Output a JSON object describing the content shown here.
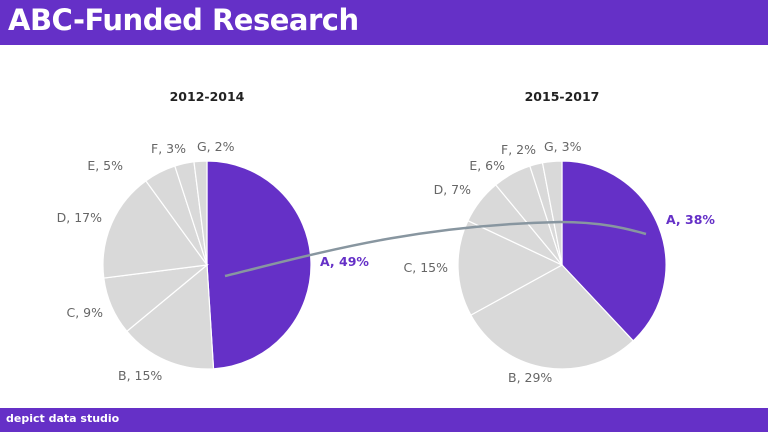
{
  "header": {
    "title": "ABC-Funded Research"
  },
  "footer": {
    "brand": "depict data studio"
  },
  "colors": {
    "accent": "#6530c7",
    "other": "#d9d9d9",
    "connector": "#8896a0",
    "label": "#666666"
  },
  "chart_data": [
    {
      "type": "pie",
      "title": "2012-2014",
      "categories": [
        "A",
        "B",
        "C",
        "D",
        "E",
        "F",
        "G"
      ],
      "values": [
        49,
        15,
        9,
        17,
        5,
        3,
        2
      ],
      "labels": [
        "A, 49%",
        "B, 15%",
        "C, 9%",
        "D, 17%",
        "E, 5%",
        "F, 3%",
        "G, 2%"
      ],
      "start": "top",
      "direction": "clockwise"
    },
    {
      "type": "pie",
      "title": "2015-2017",
      "categories": [
        "A",
        "B",
        "C",
        "D",
        "E",
        "F",
        "G"
      ],
      "values": [
        38,
        29,
        15,
        7,
        6,
        2,
        3
      ],
      "labels": [
        "A, 38%",
        "B, 29%",
        "C, 15%",
        "D, 7%",
        "E, 6%",
        "F, 2%",
        "G, 3%"
      ],
      "start": "top",
      "direction": "clockwise"
    }
  ]
}
